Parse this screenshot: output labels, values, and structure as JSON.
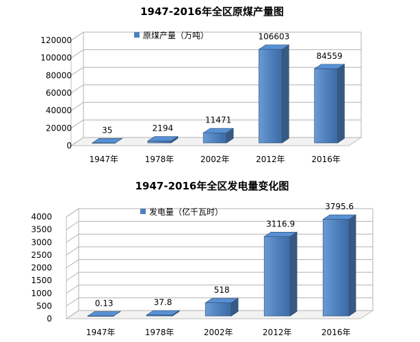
{
  "chart_data": [
    {
      "type": "bar",
      "title": "1947-2016年全区原煤产量图",
      "categories": [
        "1947年",
        "1978年",
        "2002年",
        "2012年",
        "2016年"
      ],
      "series": [
        {
          "name": "原煤产量（万吨）",
          "values": [
            35,
            2194,
            11471,
            106603,
            84559
          ]
        }
      ],
      "data_labels": [
        "35",
        "2194",
        "11471",
        "106603",
        "84559"
      ],
      "yticks": [
        "0",
        "20000",
        "40000",
        "60000",
        "80000",
        "100000",
        "120000"
      ],
      "ylim": [
        0,
        120000
      ],
      "grid": true,
      "legend_position": "top-left",
      "style": "3d-column",
      "bar_color": "#4f81bd"
    },
    {
      "type": "bar",
      "title": "1947-2016年全区发电量变化图",
      "categories": [
        "1947年",
        "1978年",
        "2002年",
        "2012年",
        "2016年"
      ],
      "series": [
        {
          "name": "发电量（亿千瓦时）",
          "values": [
            0.13,
            37.8,
            518,
            3116.9,
            3795.6
          ]
        }
      ],
      "data_labels": [
        "0.13",
        "37.8",
        "518",
        "3116.9",
        "3795.6"
      ],
      "yticks": [
        "0",
        "500",
        "1000",
        "1500",
        "2000",
        "2500",
        "3000",
        "3500",
        "4000"
      ],
      "ylim": [
        0,
        4000
      ],
      "grid": true,
      "legend_position": "top-left",
      "style": "3d-column",
      "bar_color": "#4f81bd"
    }
  ]
}
